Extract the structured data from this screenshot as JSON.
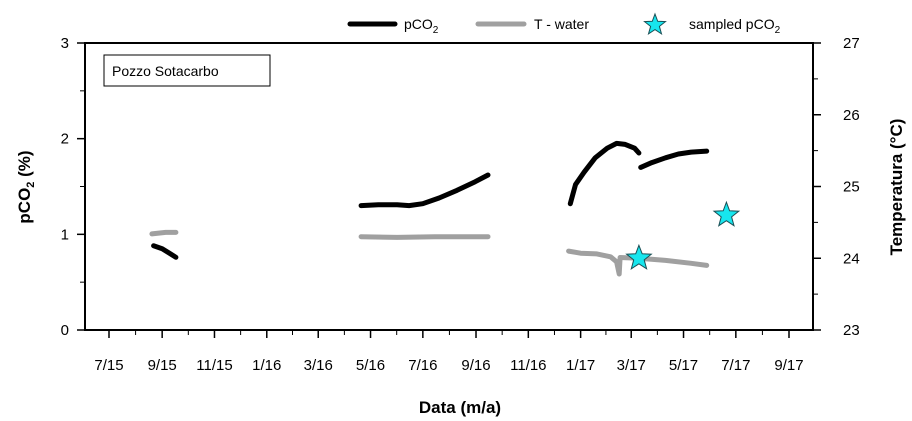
{
  "chart_data": {
    "type": "line",
    "annotation": "Pozzo Sotacarbo",
    "xlabel": "Data (m/a)",
    "ylabel_left": {
      "main": "pCO",
      "sub": "2",
      "rest": " (%)"
    },
    "ylabel_right": "Temperatura (°C)",
    "x_ticks": [
      "7/15",
      "9/15",
      "11/15",
      "1/16",
      "3/16",
      "5/16",
      "7/16",
      "9/16",
      "11/16",
      "1/17",
      "3/17",
      "5/17",
      "7/17",
      "9/17"
    ],
    "y_left_ticks": [
      "0",
      "1",
      "2",
      "3"
    ],
    "y_right_ticks": [
      "23",
      "24",
      "25",
      "26",
      "27"
    ],
    "y_left_range": [
      0,
      3
    ],
    "y_right_range": [
      23,
      27
    ],
    "x_range": [
      "2015-07-01",
      "2017-09-01"
    ],
    "grid": false,
    "legend_position": "top",
    "legend": [
      {
        "main": "pCO",
        "sub": "2",
        "rest": "",
        "marker": "line",
        "color": "#000000"
      },
      {
        "main": "T - water",
        "sub": "",
        "rest": "",
        "marker": "line",
        "color": "#a0a0a0"
      },
      {
        "main": "sampled pCO",
        "sub": "2",
        "rest": "",
        "marker": "star",
        "color": "#17e6ee"
      }
    ],
    "series": [
      {
        "name": "pCO2",
        "axis": "left",
        "color": "#000000",
        "segments": [
          [
            [
              "2015-08-22",
              0.88
            ],
            [
              "2015-09-01",
              0.85
            ],
            [
              "2015-09-10",
              0.8
            ],
            [
              "2015-09-17",
              0.76
            ]
          ],
          [
            [
              "2016-04-20",
              1.3
            ],
            [
              "2016-05-10",
              1.31
            ],
            [
              "2016-06-01",
              1.31
            ],
            [
              "2016-06-15",
              1.3
            ],
            [
              "2016-07-01",
              1.32
            ],
            [
              "2016-07-20",
              1.38
            ],
            [
              "2016-08-10",
              1.46
            ],
            [
              "2016-08-31",
              1.55
            ],
            [
              "2016-09-15",
              1.62
            ]
          ],
          [
            [
              "2016-12-20",
              1.32
            ],
            [
              "2016-12-26",
              1.52
            ],
            [
              "2017-01-05",
              1.65
            ],
            [
              "2017-01-18",
              1.8
            ],
            [
              "2017-02-01",
              1.9
            ],
            [
              "2017-02-12",
              1.95
            ],
            [
              "2017-02-22",
              1.94
            ],
            [
              "2017-03-05",
              1.9
            ],
            [
              "2017-03-10",
              1.85
            ]
          ],
          [
            [
              "2017-03-12",
              1.7
            ],
            [
              "2017-03-25",
              1.75
            ],
            [
              "2017-04-10",
              1.8
            ],
            [
              "2017-04-25",
              1.84
            ],
            [
              "2017-05-10",
              1.86
            ],
            [
              "2017-05-28",
              1.87
            ]
          ]
        ]
      },
      {
        "name": "T - water",
        "axis": "right",
        "color": "#a0a0a0",
        "segments": [
          [
            [
              "2015-08-20",
              24.34
            ],
            [
              "2015-09-05",
              24.36
            ],
            [
              "2015-09-17",
              24.36
            ]
          ],
          [
            [
              "2016-04-20",
              24.3
            ],
            [
              "2016-06-01",
              24.29
            ],
            [
              "2016-07-15",
              24.3
            ],
            [
              "2016-09-15",
              24.3
            ]
          ],
          [
            [
              "2016-12-18",
              24.1
            ],
            [
              "2017-01-01",
              24.07
            ],
            [
              "2017-01-20",
              24.06
            ],
            [
              "2017-02-05",
              24.02
            ],
            [
              "2017-02-12",
              23.95
            ],
            [
              "2017-02-15",
              23.78
            ],
            [
              "2017-02-16",
              24.01
            ],
            [
              "2017-03-10",
              24.0
            ],
            [
              "2017-04-10",
              23.97
            ],
            [
              "2017-05-10",
              23.93
            ],
            [
              "2017-05-28",
              23.9
            ]
          ]
        ]
      },
      {
        "name": "sampled pCO2",
        "axis": "left",
        "color": "#17e6ee",
        "marker": "star",
        "points": [
          [
            "2017-03-10",
            0.75
          ],
          [
            "2017-06-20",
            1.2
          ]
        ]
      }
    ]
  }
}
